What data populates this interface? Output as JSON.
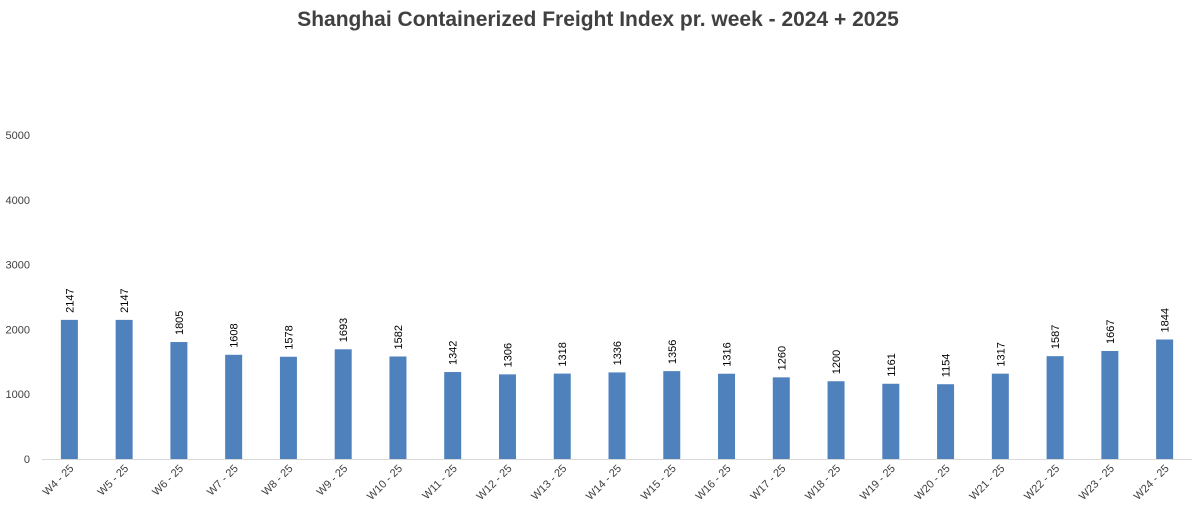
{
  "chart_data": {
    "type": "bar",
    "title": "Shanghai Containerized Freight Index pr. week - 2024 + 2025",
    "xlabel": "",
    "ylabel": "",
    "ylim": [
      0,
      5000
    ],
    "yticks": [
      0,
      1000,
      2000,
      3000,
      4000,
      5000
    ],
    "grid": false,
    "legend": "none",
    "bar_color": "#4f81bd",
    "categories": [
      "W4 - 25",
      "W5 - 25",
      "W6 - 25",
      "W7 - 25",
      "W8 - 25",
      "W9 - 25",
      "W10 - 25",
      "W11 - 25",
      "W12 - 25",
      "W13 - 25",
      "W14 - 25",
      "W15 - 25",
      "W16 - 25",
      "W17 - 25",
      "W18 - 25",
      "W19 - 25",
      "W20 - 25",
      "W21 - 25",
      "W22 - 25",
      "W23 - 25",
      "W24 - 25"
    ],
    "values": [
      2147,
      2147,
      1805,
      1608,
      1578,
      1693,
      1582,
      1342,
      1306,
      1318,
      1336,
      1356,
      1316,
      1260,
      1200,
      1161,
      1154,
      1317,
      1587,
      1667,
      1844
    ],
    "data_labels": [
      "2147",
      "2147",
      "1805",
      "1608",
      "1578",
      "1693",
      "1582",
      "1342",
      "1306",
      "1318",
      "1336",
      "1356",
      "1316",
      "1260",
      "1200",
      "1161",
      "1154",
      "1317",
      "1587",
      "1667",
      "1844"
    ]
  }
}
